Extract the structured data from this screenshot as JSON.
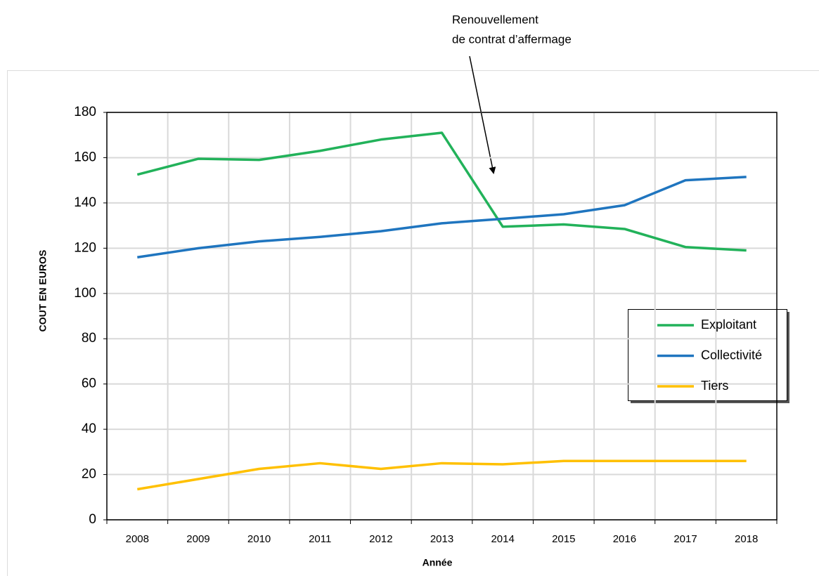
{
  "chart_data": {
    "type": "line",
    "annotation": [
      "Renouvellement",
      "de contrat d’affermage"
    ],
    "xlabel": "Année",
    "ylabel": "COUT  EN EUROS",
    "categories": [
      "2008",
      "2009",
      "2010",
      "2011",
      "2012",
      "2013",
      "2014",
      "2015",
      "2016",
      "2017",
      "2018"
    ],
    "series": [
      {
        "name": "Exploitant",
        "color": "#22b25a",
        "values": [
          152.5,
          159.5,
          159,
          163,
          168,
          171,
          129.5,
          130.5,
          128.5,
          120.5,
          119
        ]
      },
      {
        "name": "Collectivité",
        "color": "#1f75bf",
        "values": [
          116,
          120,
          123,
          125,
          127.5,
          131,
          133,
          135,
          139,
          150,
          151.5
        ]
      },
      {
        "name": "Tiers",
        "color": "#ffc000",
        "values": [
          13.5,
          18,
          22.5,
          25,
          22.5,
          25,
          24.5,
          26,
          26,
          26,
          26
        ]
      }
    ],
    "ylim": [
      0,
      180
    ],
    "yticks": [
      0,
      20,
      40,
      60,
      80,
      100,
      120,
      140,
      160,
      180
    ],
    "grid": true
  }
}
